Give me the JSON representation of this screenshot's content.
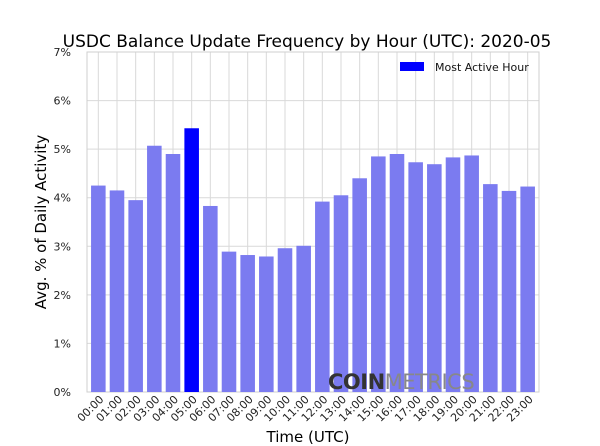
{
  "chart_data": {
    "type": "bar",
    "title": "USDC Balance Update Frequency by Hour (UTC): 2020-05",
    "xlabel": "Time (UTC)",
    "ylabel": "Avg. % of Daily Activity",
    "ylim": [
      0,
      7
    ],
    "yticks": [
      "0%",
      "1%",
      "2%",
      "3%",
      "4%",
      "5%",
      "6%",
      "7%"
    ],
    "grid": true,
    "legend": {
      "position": "top-right",
      "entries": [
        "Most Active Hour"
      ]
    },
    "colors": {
      "bar": "#7b7bf0",
      "highlight": "#0000ff",
      "grid": "#d9d9d9"
    },
    "categories": [
      "00:00",
      "01:00",
      "02:00",
      "03:00",
      "04:00",
      "05:00",
      "06:00",
      "07:00",
      "08:00",
      "09:00",
      "10:00",
      "11:00",
      "12:00",
      "13:00",
      "14:00",
      "15:00",
      "16:00",
      "17:00",
      "18:00",
      "19:00",
      "20:00",
      "21:00",
      "22:00",
      "23:00"
    ],
    "values": [
      4.25,
      4.15,
      3.95,
      5.07,
      4.9,
      5.43,
      3.83,
      2.89,
      2.82,
      2.79,
      2.96,
      3.01,
      3.92,
      4.05,
      4.4,
      4.85,
      4.9,
      4.73,
      4.69,
      4.83,
      4.87,
      4.28,
      4.14,
      4.23
    ],
    "highlight_index": 5
  },
  "watermark": {
    "bold": "COIN",
    "light": "METRICS"
  }
}
